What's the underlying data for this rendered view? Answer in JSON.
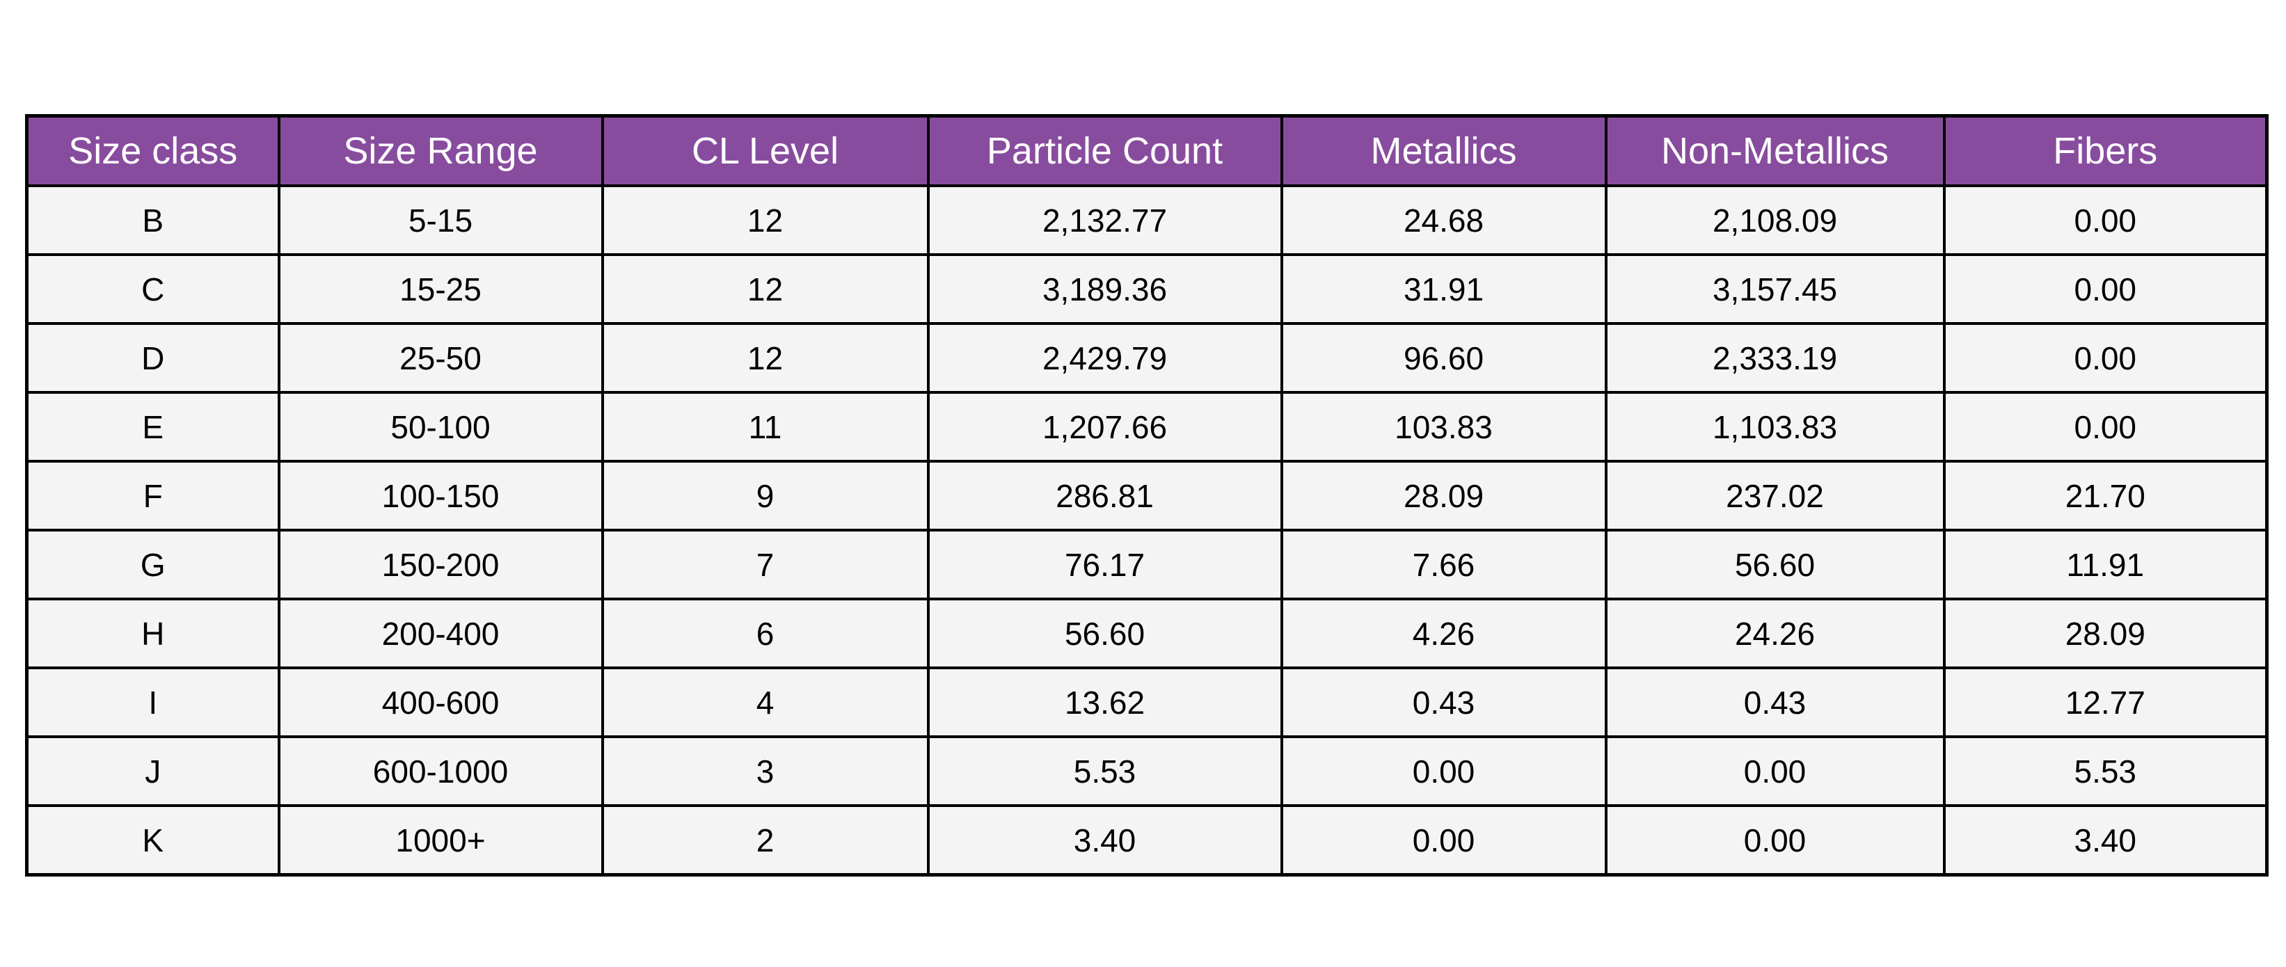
{
  "table": {
    "header_color": "#884c9e",
    "columns": [
      "Size class",
      "Size Range",
      "CL Level",
      "Particle Count",
      "Metallics",
      "Non-Metallics",
      "Fibers"
    ],
    "rows": [
      [
        "B",
        "5-15",
        "12",
        "2,132.77",
        "24.68",
        "2,108.09",
        "0.00"
      ],
      [
        "C",
        "15-25",
        "12",
        "3,189.36",
        "31.91",
        "3,157.45",
        "0.00"
      ],
      [
        "D",
        "25-50",
        "12",
        "2,429.79",
        "96.60",
        "2,333.19",
        "0.00"
      ],
      [
        "E",
        "50-100",
        "11",
        "1,207.66",
        "103.83",
        "1,103.83",
        "0.00"
      ],
      [
        "F",
        "100-150",
        "9",
        "286.81",
        "28.09",
        "237.02",
        "21.70"
      ],
      [
        "G",
        "150-200",
        "7",
        "76.17",
        "7.66",
        "56.60",
        "11.91"
      ],
      [
        "H",
        "200-400",
        "6",
        "56.60",
        "4.26",
        "24.26",
        "28.09"
      ],
      [
        "I",
        "400-600",
        "4",
        "13.62",
        "0.43",
        "0.43",
        "12.77"
      ],
      [
        "J",
        "600-1000",
        "3",
        "5.53",
        "0.00",
        "0.00",
        "5.53"
      ],
      [
        "K",
        "1000+",
        "2",
        "3.40",
        "0.00",
        "0.00",
        "3.40"
      ]
    ]
  }
}
